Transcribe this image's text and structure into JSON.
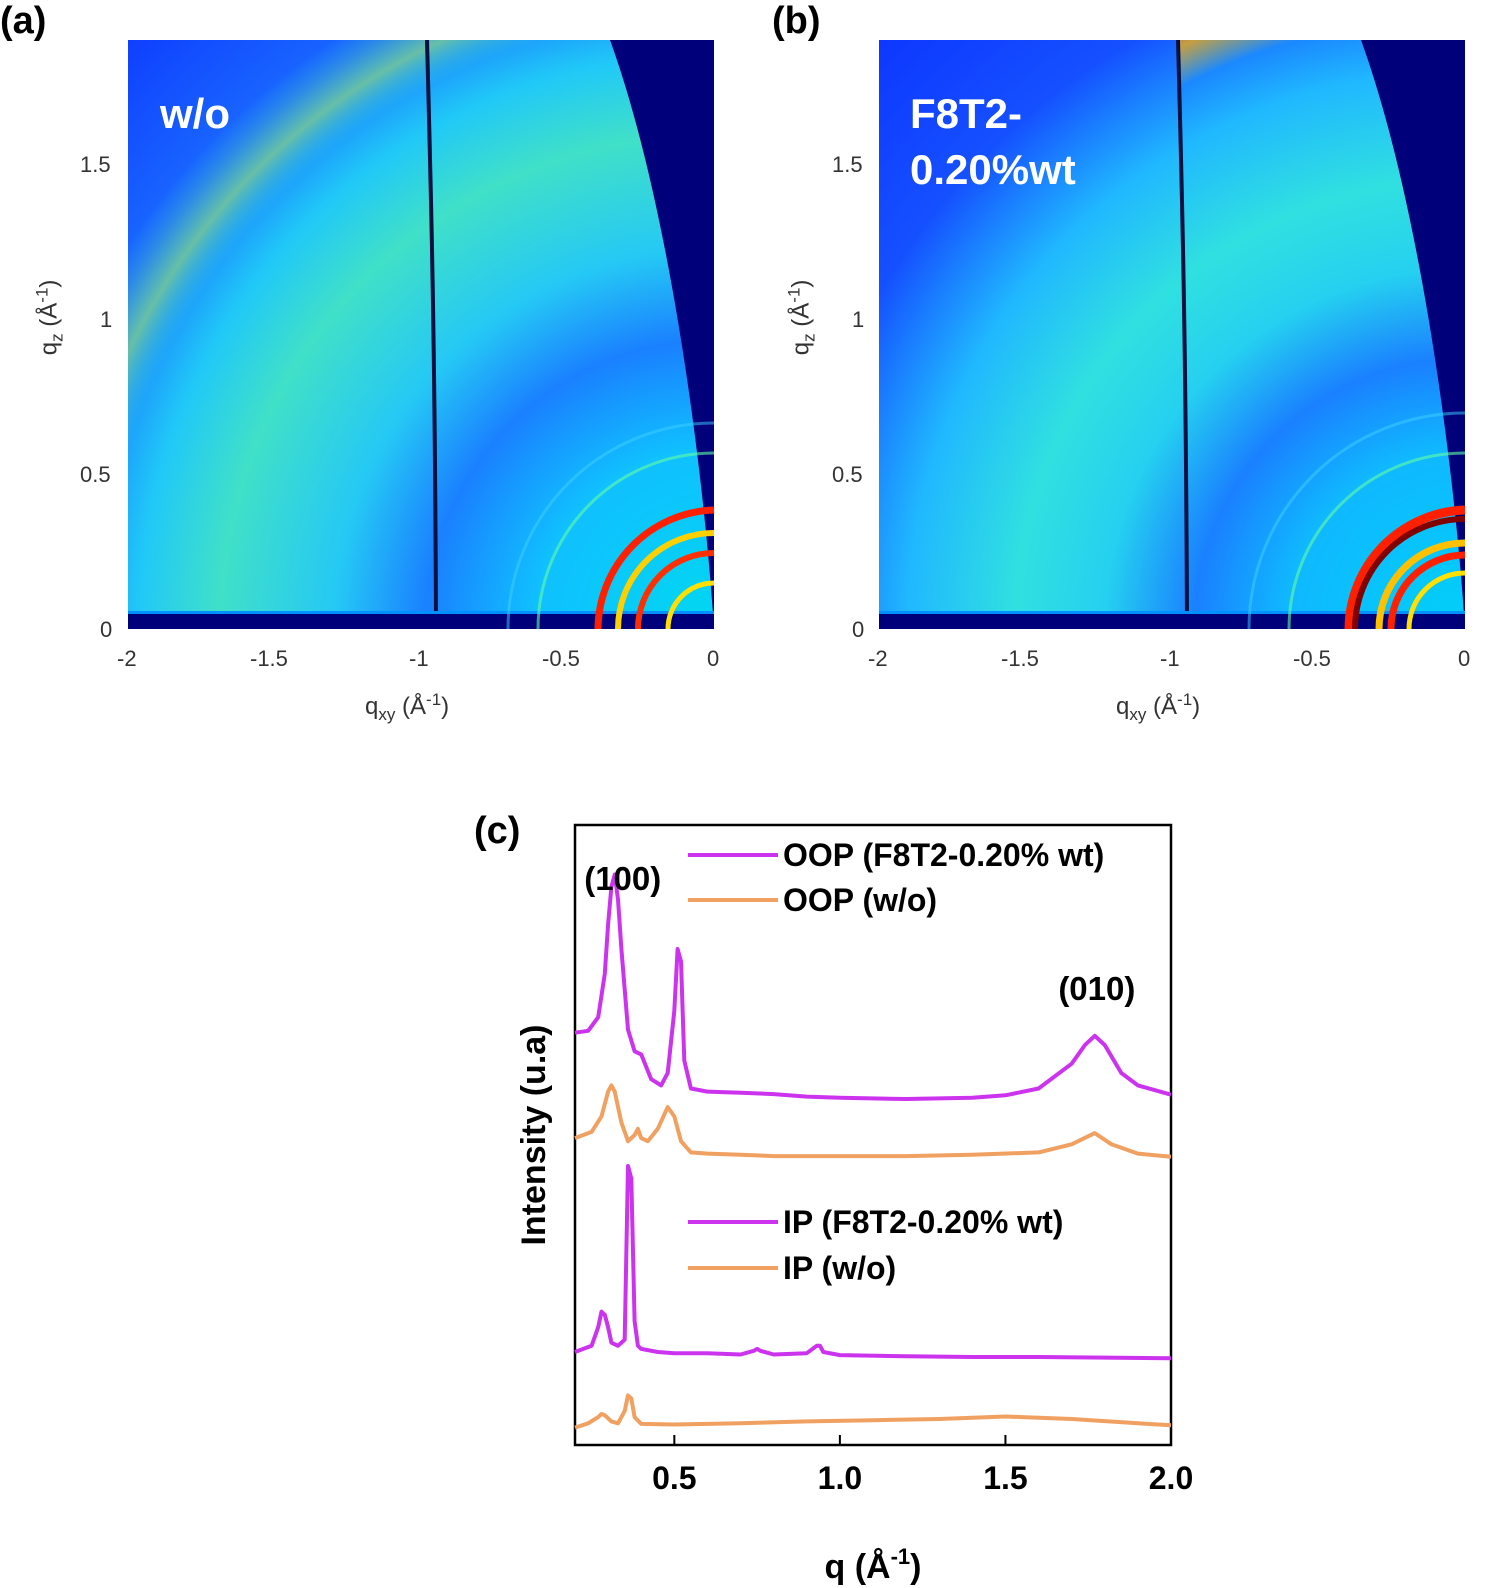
{
  "panels": [
    {
      "letter": "(a)",
      "overlay_lines": [
        "w/o"
      ],
      "xlabel": {
        "main": "q",
        "sub": "xy",
        "unit_open": " (Å",
        "sup": "-1",
        "unit_close": ")"
      },
      "ylabel": {
        "main": "q",
        "sub": "z",
        "unit_open": " (Å",
        "sup": "-1",
        "unit_close": ")"
      },
      "xticks": [
        "-2",
        "-1.5",
        "-1",
        "-0.5",
        "0"
      ],
      "yticks": [
        "0",
        "0.5",
        "1",
        "1.5"
      ]
    },
    {
      "letter": "(b)",
      "overlay_lines": [
        "F8T2-",
        "0.20%wt"
      ],
      "xlabel": {
        "main": "q",
        "sub": "xy",
        "unit_open": " (Å",
        "sup": "-1",
        "unit_close": ")"
      },
      "ylabel": {
        "main": "q",
        "sub": "z",
        "unit_open": " (Å",
        "sup": "-1",
        "unit_close": ")"
      },
      "xticks": [
        "-2",
        "-1.5",
        "-1",
        "-0.5",
        "0"
      ],
      "yticks": [
        "0",
        "0.5",
        "1",
        "1.5"
      ]
    }
  ],
  "colors": {
    "magenta": "#cc33ee",
    "orange": "#f0a060",
    "map_dark": "#00007a",
    "map_blue": "#0a32ff"
  },
  "chart_data": [
    {
      "panel": "(a)",
      "type": "heatmap",
      "title": "",
      "annotation": "w/o",
      "xlabel": "qxy (Å-1)",
      "ylabel": "qz (Å-1)",
      "xlim": [
        -2,
        0
      ],
      "ylim": [
        0,
        1.9
      ],
      "xticks": [
        -2,
        -1.5,
        -1,
        -0.5,
        0
      ],
      "yticks": [
        0,
        0.5,
        1,
        1.5
      ],
      "colormap": "jet",
      "detector_gap_qxy": -0.97
    },
    {
      "panel": "(b)",
      "type": "heatmap",
      "title": "",
      "annotation": "F8T2-0.20%wt",
      "xlabel": "qxy (Å-1)",
      "ylabel": "qz (Å-1)",
      "xlim": [
        -2,
        0
      ],
      "ylim": [
        0,
        1.9
      ],
      "xticks": [
        -2,
        -1.5,
        -1,
        -0.5,
        0
      ],
      "yticks": [
        0,
        0.5,
        1,
        1.5
      ],
      "colormap": "jet",
      "detector_gap_qxy": -0.97
    },
    {
      "panel": "(c)",
      "type": "line",
      "xlabel": "q (Å-1)",
      "ylabel": "Intensity (u.a)",
      "xlim": [
        0.2,
        2.0
      ],
      "xticks": [
        0.5,
        1.0,
        1.5,
        2.0
      ],
      "xtick_labels": [
        "0.5",
        "1.0",
        "1.5",
        "2.0"
      ],
      "ylim": [
        0,
        1
      ],
      "yticks": [],
      "peak_labels": [
        {
          "text": "(100)",
          "q": 0.32
        },
        {
          "text": "(010)",
          "q": 1.77
        }
      ],
      "legend_oop": [
        "OOP (F8T2-0.20% wt)",
        "OOP (w/o)"
      ],
      "legend_ip": [
        "IP (F8T2-0.20% wt)",
        "IP (w/o)"
      ],
      "series": [
        {
          "name": "OOP (F8T2-0.20% wt)",
          "color": "#cc33ee",
          "x": [
            0.2,
            0.24,
            0.27,
            0.29,
            0.3,
            0.31,
            0.32,
            0.33,
            0.34,
            0.36,
            0.38,
            0.4,
            0.43,
            0.46,
            0.48,
            0.5,
            0.51,
            0.52,
            0.53,
            0.55,
            0.6,
            0.7,
            0.8,
            0.9,
            1.0,
            1.2,
            1.4,
            1.5,
            1.6,
            1.7,
            1.74,
            1.77,
            1.8,
            1.85,
            1.9,
            2.0
          ],
          "y": [
            0.665,
            0.668,
            0.69,
            0.76,
            0.84,
            0.9,
            0.92,
            0.88,
            0.8,
            0.67,
            0.635,
            0.63,
            0.59,
            0.58,
            0.6,
            0.7,
            0.8,
            0.78,
            0.62,
            0.575,
            0.57,
            0.568,
            0.566,
            0.562,
            0.56,
            0.558,
            0.56,
            0.564,
            0.575,
            0.615,
            0.645,
            0.66,
            0.645,
            0.6,
            0.58,
            0.565
          ]
        },
        {
          "name": "OOP (w/o)",
          "color": "#f0a060",
          "x": [
            0.2,
            0.25,
            0.28,
            0.3,
            0.31,
            0.32,
            0.34,
            0.36,
            0.38,
            0.39,
            0.4,
            0.42,
            0.45,
            0.48,
            0.5,
            0.52,
            0.55,
            0.6,
            0.7,
            0.8,
            0.9,
            1.0,
            1.2,
            1.4,
            1.6,
            1.7,
            1.77,
            1.82,
            1.9,
            2.0
          ],
          "y": [
            0.495,
            0.505,
            0.53,
            0.57,
            0.58,
            0.57,
            0.52,
            0.49,
            0.5,
            0.51,
            0.495,
            0.49,
            0.51,
            0.545,
            0.53,
            0.49,
            0.472,
            0.47,
            0.468,
            0.466,
            0.466,
            0.466,
            0.466,
            0.468,
            0.472,
            0.485,
            0.503,
            0.485,
            0.47,
            0.465
          ]
        },
        {
          "name": "IP (F8T2-0.20% wt)",
          "color": "#cc33ee",
          "x": [
            0.2,
            0.25,
            0.27,
            0.28,
            0.29,
            0.3,
            0.31,
            0.33,
            0.35,
            0.36,
            0.37,
            0.38,
            0.39,
            0.4,
            0.45,
            0.5,
            0.6,
            0.7,
            0.74,
            0.75,
            0.76,
            0.8,
            0.9,
            0.93,
            0.94,
            0.95,
            1.0,
            1.2,
            1.4,
            1.6,
            1.8,
            2.0
          ],
          "y": [
            0.15,
            0.16,
            0.19,
            0.215,
            0.21,
            0.19,
            0.165,
            0.16,
            0.17,
            0.45,
            0.43,
            0.2,
            0.16,
            0.155,
            0.15,
            0.148,
            0.148,
            0.146,
            0.152,
            0.155,
            0.152,
            0.146,
            0.148,
            0.16,
            0.16,
            0.15,
            0.145,
            0.143,
            0.142,
            0.142,
            0.141,
            0.14
          ]
        },
        {
          "name": "IP (w/o)",
          "color": "#f0a060",
          "x": [
            0.2,
            0.24,
            0.27,
            0.28,
            0.29,
            0.31,
            0.33,
            0.35,
            0.36,
            0.37,
            0.38,
            0.4,
            0.5,
            0.7,
            0.9,
            1.1,
            1.3,
            1.5,
            1.7,
            1.9,
            2.0
          ],
          "y": [
            0.028,
            0.035,
            0.045,
            0.05,
            0.048,
            0.038,
            0.035,
            0.055,
            0.08,
            0.075,
            0.045,
            0.034,
            0.033,
            0.035,
            0.038,
            0.04,
            0.042,
            0.046,
            0.042,
            0.035,
            0.032
          ]
        }
      ]
    }
  ]
}
